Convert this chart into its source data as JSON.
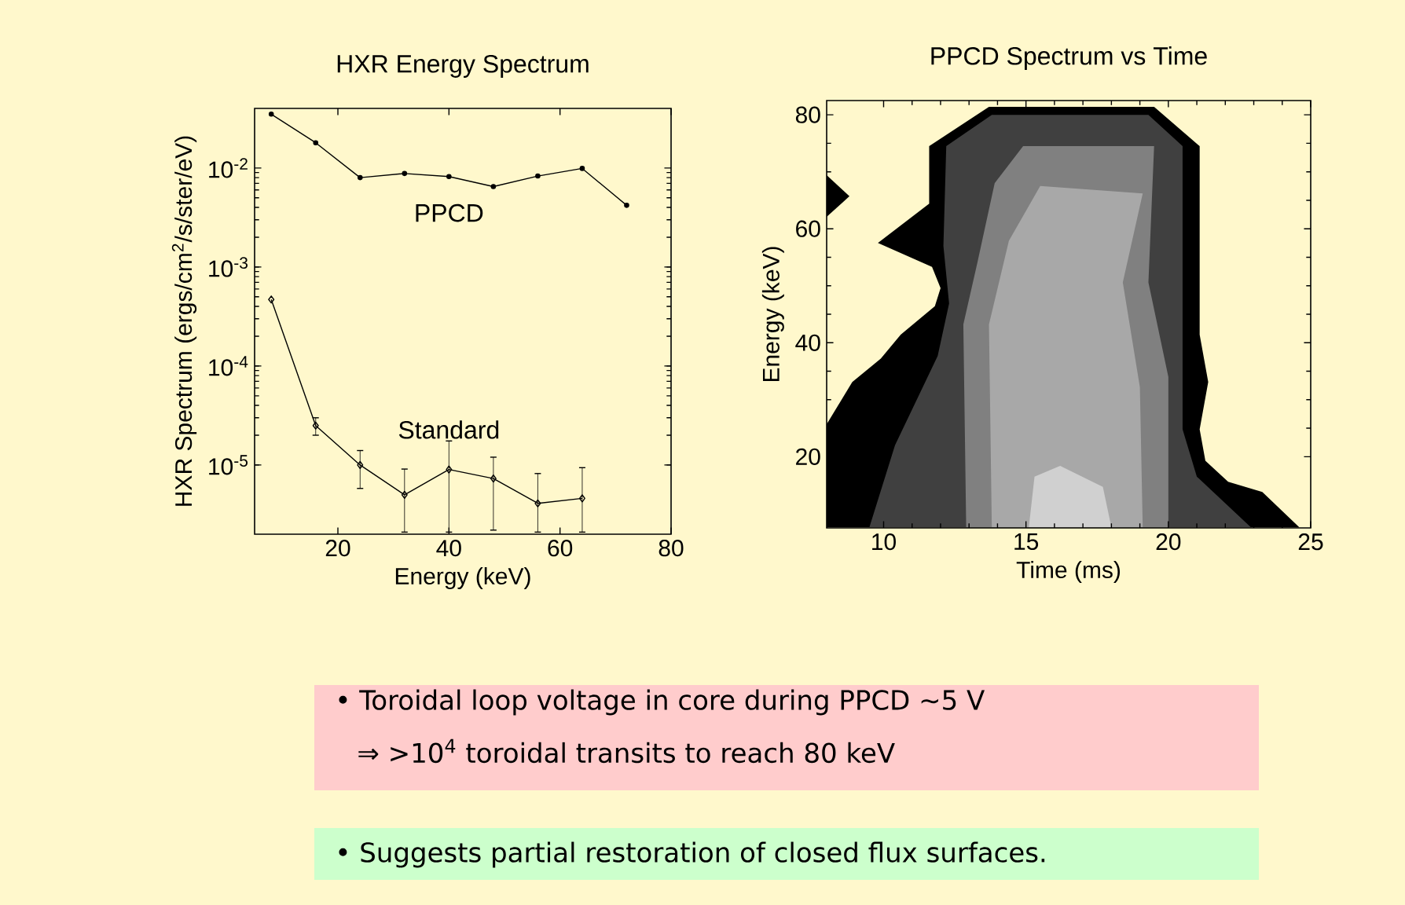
{
  "chart_data": [
    {
      "type": "line",
      "title": "HXR Energy Spectrum",
      "xlabel": "Energy (keV)",
      "ylabel": "HXR Spectrum (ergs/cm$^{2}$/s/ster/eV)",
      "log": "y",
      "legend": false,
      "grid": false,
      "x": [
        8,
        16,
        24,
        32,
        40,
        48,
        56,
        64,
        72
      ],
      "xlim": [
        5,
        80
      ],
      "xticks": [
        20,
        40,
        60,
        80
      ],
      "ylim": [
        2e-06,
        0.04
      ],
      "yticks": [
        {
          "value": 1e-05,
          "label": "10$^{-5}$"
        },
        {
          "value": 0.0001,
          "label": "10$^{-4}$"
        },
        {
          "value": 0.001,
          "label": "10$^{-3}$"
        },
        {
          "value": 0.01,
          "label": "10$^{-2}$"
        }
      ],
      "series": [
        {
          "name": "PPCD",
          "color": "#000000",
          "marker": "circle",
          "values": [
            0.035,
            0.018,
            0.008,
            0.0088,
            0.0082,
            0.0065,
            0.0083,
            0.0099,
            0.0042
          ]
        },
        {
          "name": "Standard",
          "color": "#000000",
          "marker": "diamond",
          "x": [
            8,
            16,
            24,
            32,
            40,
            48,
            56,
            64
          ],
          "values": [
            0.00047,
            2.5e-05,
            1e-05,
            5e-06,
            9e-06,
            7.3e-06,
            4.1e-06,
            4.6e-06
          ],
          "errors": [
            null,
            [
              2e-05,
              3e-05
            ],
            [
              5.8e-06,
              1.4e-05
            ],
            [
              2.1e-06,
              9.1e-06
            ],
            [
              2.1e-06,
              1.75e-05
            ],
            [
              2.2e-06,
              1.2e-05
            ],
            [
              2.1e-06,
              8.2e-06
            ],
            [
              2.1e-06,
              9.4e-06
            ]
          ]
        }
      ]
    },
    {
      "type": "area",
      "title": "PPCD Spectrum vs Time",
      "xlabel": "Time (ms)",
      "ylabel": "Energy (keV)",
      "xlim": [
        8,
        25
      ],
      "xticks": [
        10,
        15,
        20,
        25
      ],
      "ylim": [
        7.5,
        82.5
      ],
      "yticks": [
        20,
        40,
        60,
        80
      ],
      "series": [
        {
          "color": "#000000",
          "x": [
            8,
            8,
            8.9,
            9.9,
            10.6,
            11.8,
            12.0,
            11.7,
            9.8,
            11.6,
            11.6,
            13.7,
            19.5,
            21.1,
            21.1,
            21.4,
            21.1,
            21.3,
            22.1,
            23.3,
            24.6
          ],
          "values": [
            7.6,
            25.7,
            33.1,
            37.2,
            41.4,
            46.4,
            49.6,
            53.3,
            57.5,
            64.4,
            74.5,
            81.4,
            81.4,
            74.5,
            41.4,
            33.1,
            24.8,
            19.3,
            15.6,
            13.8,
            7.6
          ]
        },
        {
          "color": "#000000",
          "x": [
            8,
            8.8,
            8
          ],
          "values": [
            69.4,
            65.7,
            62.1
          ]
        },
        {
          "color": "#404040",
          "x": [
            9.5,
            10.4,
            11.9,
            12.3,
            12.1,
            12.2,
            13.8,
            19.3,
            20.5,
            20.5,
            21.0,
            22.9
          ],
          "values": [
            7.6,
            22.0,
            37.7,
            46.9,
            57.0,
            74.5,
            80.0,
            80.0,
            74.5,
            24.8,
            16.5,
            7.6
          ]
        },
        {
          "color": "#808080",
          "x": [
            12.9,
            12.8,
            13.3,
            13.9,
            14.9,
            19.5,
            19.3,
            20.0,
            20.0
          ],
          "values": [
            7.6,
            43.2,
            54.2,
            68.0,
            74.5,
            74.5,
            50.6,
            34.0,
            7.6
          ]
        },
        {
          "color": "#a8a8a8",
          "x": [
            13.8,
            13.7,
            14.4,
            15.5,
            19.1,
            18.4,
            19.0,
            19.1
          ],
          "values": [
            7.6,
            43.2,
            57.9,
            67.5,
            66.2,
            50.6,
            32.2,
            7.6
          ]
        },
        {
          "color": "#d0d0d0",
          "x": [
            15.1,
            15.3,
            16.2,
            17.7,
            18.0
          ],
          "values": [
            7.6,
            16.5,
            18.4,
            14.7,
            7.6
          ]
        }
      ]
    },
    {
      "type": "other",
      "annotations": [
        "• Toroidal loop voltage in core during PPCD ~5 V",
        "⇒ >10$^{4}$ toroidal transits to reach 80 keV",
        "• Suggests partial restoration of closed flux surfaces."
      ]
    }
  ]
}
